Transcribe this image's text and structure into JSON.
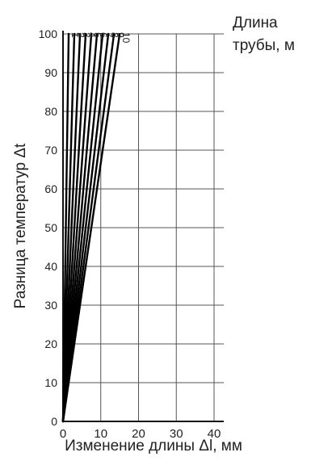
{
  "chart_data": {
    "type": "line",
    "xlabel": "Изменение длины Δl, мм",
    "ylabel": "Разница температур Δt",
    "legend_title_line1": "Длина",
    "legend_title_line2": "трубы, м",
    "xlim": [
      0,
      40
    ],
    "ylim": [
      0,
      100
    ],
    "x_ticks": [
      0,
      10,
      20,
      30,
      40
    ],
    "y_ticks": [
      0,
      10,
      20,
      30,
      40,
      50,
      60,
      70,
      80,
      90,
      100
    ],
    "grid": true,
    "series": [
      {
        "name": "1",
        "x": [
          0,
          1.5
        ],
        "y": [
          0,
          100
        ]
      },
      {
        "name": "2",
        "x": [
          0,
          3.0
        ],
        "y": [
          0,
          100
        ]
      },
      {
        "name": "3",
        "x": [
          0,
          4.5
        ],
        "y": [
          0,
          100
        ]
      },
      {
        "name": "4",
        "x": [
          0,
          6.0
        ],
        "y": [
          0,
          100
        ]
      },
      {
        "name": "5",
        "x": [
          0,
          7.5
        ],
        "y": [
          0,
          100
        ]
      },
      {
        "name": "6",
        "x": [
          0,
          9.0
        ],
        "y": [
          0,
          100
        ]
      },
      {
        "name": "7",
        "x": [
          0,
          10.5
        ],
        "y": [
          0,
          100
        ]
      },
      {
        "name": "8",
        "x": [
          0,
          12.0
        ],
        "y": [
          0,
          100
        ]
      },
      {
        "name": "9",
        "x": [
          0,
          13.5
        ],
        "y": [
          0,
          100
        ]
      },
      {
        "name": "10",
        "x": [
          0,
          15.0
        ],
        "y": [
          0,
          100
        ]
      }
    ]
  }
}
